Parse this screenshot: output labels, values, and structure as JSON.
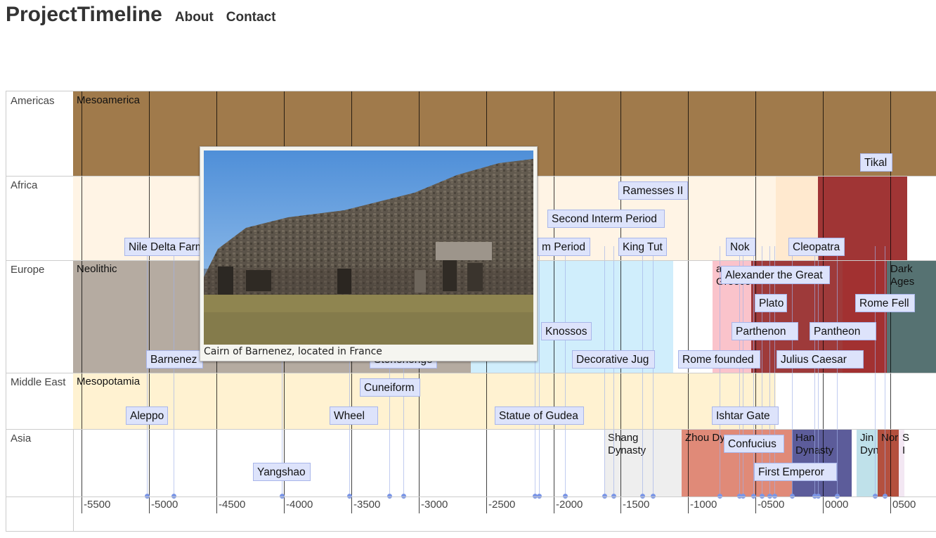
{
  "nav": {
    "brand": "ProjectTimeline",
    "about": "About",
    "contact": "Contact"
  },
  "rows": [
    "Americas",
    "Africa",
    "Europe",
    "Middle East",
    "Asia"
  ],
  "axis": {
    "ticks": [
      "-5500",
      "-5000",
      "-4500",
      "-4000",
      "-3500",
      "-3000",
      "-2500",
      "-2000",
      "-1500",
      "-1000",
      "-0500",
      "0000",
      "0500"
    ]
  },
  "periods": [
    {
      "label": "Mesoamerica",
      "color": "#a07a4b"
    },
    {
      "label": "",
      "color": "#fff4e5"
    },
    {
      "label": "",
      "color": "#ffe9cf"
    },
    {
      "label": "",
      "color": "#a03535"
    },
    {
      "label": "Neolithic",
      "color": "#b5aba1"
    },
    {
      "label": "",
      "color": "#d0eefc"
    },
    {
      "label": "a\nGreece",
      "color": "#fac3cb"
    },
    {
      "label": "",
      "color": "#9e3a3a"
    },
    {
      "label": "",
      "color": "#a23131"
    },
    {
      "label": "Dark Ages",
      "color": "#567272"
    },
    {
      "label": "Mesopotamia",
      "color": "#fff2d1"
    },
    {
      "label": "Shang\nDynasty",
      "color": "#eeeeee"
    },
    {
      "label": "Zhou Dy",
      "color": "#e08a78"
    },
    {
      "label": "Han\nDynasty",
      "color": "#5c5c9a"
    },
    {
      "label": "Jin\nDyn",
      "color": "#bfe1ea"
    },
    {
      "label": "Nor",
      "color": "#b4503e"
    },
    {
      "label": "S\nI",
      "color": "#f3e7f3"
    }
  ],
  "events": [
    "Tikal",
    "Ramesses II",
    "Second Interm Period",
    "Nile Delta Farm",
    "m Period",
    "King Tut",
    "Nok",
    "Cleopatra",
    "Alexander the Great",
    "Plato",
    "Rome Fell",
    "Parthenon",
    "Pantheon",
    "Knossos",
    "Barnenez",
    "Stonehenge",
    "Decorative Jug",
    "Rome founded",
    "Julius Caesar",
    "Cuneiform",
    "Aleppo",
    "Wheel",
    "Statue of Gudea",
    "Ishtar Gate",
    "Confucius",
    "Yangshao",
    "First Emperor"
  ],
  "popup": {
    "caption": "Cairn of Barnenez, located in France"
  },
  "colors": {
    "event_bg": "#dde3fb",
    "event_border": "#a9b6ea",
    "stem": "#9fb0e8",
    "dot": "#7b96e6"
  }
}
